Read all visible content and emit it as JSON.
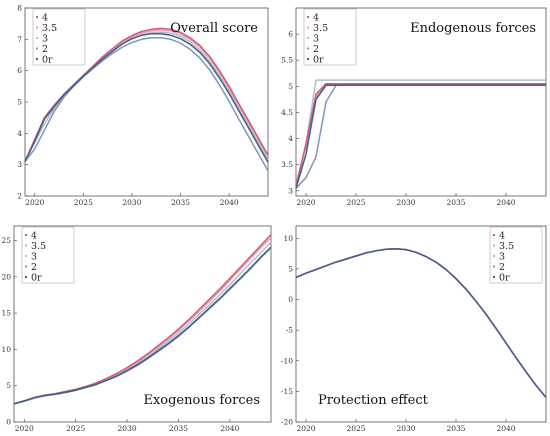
{
  "chart_data": [
    {
      "type": "line",
      "title": "Overall score",
      "xlim": [
        2019,
        2044
      ],
      "ylim": [
        2,
        8
      ],
      "xticks": [
        2020,
        2025,
        2030,
        2035,
        2040
      ],
      "yticks": [
        2,
        3,
        4,
        5,
        6,
        7,
        8
      ],
      "legend_position": "top-left",
      "series": [
        {
          "name": "4",
          "color": "#d45a7a",
          "x": [
            2019,
            2020,
            2021,
            2022,
            2023,
            2024,
            2025,
            2026,
            2027,
            2028,
            2029,
            2030,
            2031,
            2032,
            2033,
            2034,
            2035,
            2036,
            2037,
            2038,
            2039,
            2040,
            2041,
            2042,
            2043,
            2044
          ],
          "y": [
            3.1,
            3.8,
            4.5,
            4.9,
            5.25,
            5.55,
            5.85,
            6.15,
            6.45,
            6.7,
            6.95,
            7.12,
            7.25,
            7.32,
            7.35,
            7.32,
            7.22,
            7.05,
            6.8,
            6.45,
            6.0,
            5.5,
            4.95,
            4.4,
            3.85,
            3.3
          ]
        },
        {
          "name": "3.5",
          "color": "#e6a0b3",
          "x": [
            2019,
            2020,
            2021,
            2022,
            2023,
            2024,
            2025,
            2026,
            2027,
            2028,
            2029,
            2030,
            2031,
            2032,
            2033,
            2034,
            2035,
            2036,
            2037,
            2038,
            2039,
            2040,
            2041,
            2042,
            2043,
            2044
          ],
          "y": [
            3.1,
            3.8,
            4.5,
            4.9,
            5.25,
            5.55,
            5.85,
            6.13,
            6.42,
            6.66,
            6.9,
            7.07,
            7.2,
            7.27,
            7.3,
            7.27,
            7.17,
            7.0,
            6.75,
            6.4,
            5.95,
            5.45,
            4.9,
            4.35,
            3.8,
            3.25
          ]
        },
        {
          "name": "3",
          "color": "#b4bccb",
          "x": [
            2019,
            2020,
            2021,
            2022,
            2023,
            2024,
            2025,
            2026,
            2027,
            2028,
            2029,
            2030,
            2031,
            2032,
            2033,
            2034,
            2035,
            2036,
            2037,
            2038,
            2039,
            2040,
            2041,
            2042,
            2043,
            2044
          ],
          "y": [
            3.1,
            3.7,
            4.3,
            4.8,
            5.2,
            5.52,
            5.82,
            6.1,
            6.38,
            6.62,
            6.85,
            7.02,
            7.14,
            7.21,
            7.23,
            7.2,
            7.1,
            6.92,
            6.66,
            6.3,
            5.85,
            5.35,
            4.8,
            4.25,
            3.7,
            3.15
          ]
        },
        {
          "name": "2",
          "color": "#7f96b4",
          "x": [
            2019,
            2020,
            2021,
            2022,
            2023,
            2024,
            2025,
            2026,
            2027,
            2028,
            2029,
            2030,
            2031,
            2032,
            2033,
            2034,
            2035,
            2036,
            2037,
            2038,
            2039,
            2040,
            2041,
            2042,
            2043,
            2044
          ],
          "y": [
            3.1,
            3.5,
            4.1,
            4.7,
            5.15,
            5.5,
            5.8,
            6.07,
            6.32,
            6.55,
            6.75,
            6.9,
            7.0,
            7.05,
            7.05,
            7.0,
            6.88,
            6.68,
            6.4,
            6.02,
            5.55,
            5.02,
            4.45,
            3.9,
            3.35,
            2.8
          ]
        },
        {
          "name": "0r",
          "color": "#3f5f8f",
          "x": [
            2019,
            2020,
            2021,
            2022,
            2023,
            2024,
            2025,
            2026,
            2027,
            2028,
            2029,
            2030,
            2031,
            2032,
            2033,
            2034,
            2035,
            2036,
            2037,
            2038,
            2039,
            2040,
            2041,
            2042,
            2043,
            2044
          ],
          "y": [
            3.1,
            3.75,
            4.45,
            4.85,
            5.22,
            5.52,
            5.82,
            6.1,
            6.38,
            6.62,
            6.85,
            7.02,
            7.13,
            7.18,
            7.18,
            7.13,
            7.02,
            6.84,
            6.58,
            6.22,
            5.77,
            5.27,
            4.72,
            4.17,
            3.62,
            3.08
          ]
        }
      ]
    },
    {
      "type": "line",
      "title": "Endogenous forces",
      "xlim": [
        2019,
        2044
      ],
      "ylim": [
        2.9,
        6.5
      ],
      "xticks": [
        2020,
        2025,
        2030,
        2035,
        2040
      ],
      "yticks": [
        3.0,
        3.5,
        4.0,
        4.5,
        5.0,
        5.5,
        6.0
      ],
      "legend_position": "top-left",
      "series": [
        {
          "name": "4",
          "color": "#d45a7a",
          "x": [
            2019,
            2020,
            2021,
            2022,
            2023,
            2044
          ],
          "y": [
            3.1,
            3.9,
            4.85,
            5.05,
            5.05,
            5.05
          ]
        },
        {
          "name": "3.5",
          "color": "#e6a0b3",
          "x": [
            2019,
            2020,
            2021,
            2022,
            2023,
            2044
          ],
          "y": [
            3.1,
            3.85,
            4.8,
            5.03,
            5.03,
            5.03
          ]
        },
        {
          "name": "3",
          "color": "#b4bccb",
          "x": [
            2019,
            2020,
            2021,
            2022,
            2023,
            2044
          ],
          "y": [
            3.1,
            3.9,
            5.12,
            5.12,
            5.12,
            5.12
          ]
        },
        {
          "name": "2",
          "color": "#7f96b4",
          "x": [
            2019,
            2020,
            2021,
            2022,
            2023,
            2044
          ],
          "y": [
            3.05,
            3.25,
            3.65,
            4.7,
            5.02,
            5.02
          ]
        },
        {
          "name": "0r",
          "color": "#3f5f8f",
          "x": [
            2019,
            2020,
            2021,
            2022,
            2023,
            2044
          ],
          "y": [
            3.05,
            3.7,
            4.75,
            5.02,
            5.02,
            5.02
          ]
        }
      ]
    },
    {
      "type": "line",
      "title": "Exogenous forces",
      "xlim": [
        2019,
        2044
      ],
      "ylim": [
        0,
        27
      ],
      "xticks": [
        2020,
        2025,
        2030,
        2035,
        2040
      ],
      "yticks": [
        0,
        5,
        10,
        15,
        20,
        25
      ],
      "legend_position": "top-left",
      "series": [
        {
          "name": "4",
          "color": "#d45a7a",
          "x": [
            2019,
            2020,
            2021,
            2022,
            2023,
            2024,
            2025,
            2026,
            2027,
            2028,
            2029,
            2030,
            2031,
            2032,
            2033,
            2034,
            2035,
            2036,
            2037,
            2038,
            2039,
            2040,
            2041,
            2042,
            2043,
            2044
          ],
          "y": [
            2.5,
            2.9,
            3.4,
            3.7,
            3.9,
            4.2,
            4.5,
            4.9,
            5.4,
            6.0,
            6.7,
            7.5,
            8.4,
            9.4,
            10.5,
            11.6,
            12.8,
            14.1,
            15.5,
            16.9,
            18.3,
            19.8,
            21.3,
            22.8,
            24.3,
            25.8
          ]
        },
        {
          "name": "3.5",
          "color": "#e6a0b3",
          "x": [
            2019,
            2020,
            2021,
            2022,
            2023,
            2024,
            2025,
            2026,
            2027,
            2028,
            2029,
            2030,
            2031,
            2032,
            2033,
            2034,
            2035,
            2036,
            2037,
            2038,
            2039,
            2040,
            2041,
            2042,
            2043,
            2044
          ],
          "y": [
            2.5,
            2.9,
            3.4,
            3.7,
            3.9,
            4.2,
            4.5,
            4.9,
            5.35,
            5.95,
            6.6,
            7.4,
            8.3,
            9.3,
            10.3,
            11.4,
            12.6,
            13.9,
            15.2,
            16.6,
            18.0,
            19.5,
            21.0,
            22.5,
            24.0,
            25.4
          ]
        },
        {
          "name": "3",
          "color": "#b4bccb",
          "x": [
            2019,
            2020,
            2021,
            2022,
            2023,
            2024,
            2025,
            2026,
            2027,
            2028,
            2029,
            2030,
            2031,
            2032,
            2033,
            2034,
            2035,
            2036,
            2037,
            2038,
            2039,
            2040,
            2041,
            2042,
            2043,
            2044
          ],
          "y": [
            2.5,
            2.9,
            3.35,
            3.65,
            3.85,
            4.15,
            4.45,
            4.85,
            5.3,
            5.85,
            6.5,
            7.25,
            8.1,
            9.05,
            10.05,
            11.1,
            12.25,
            13.5,
            14.8,
            16.1,
            17.5,
            18.9,
            20.4,
            21.9,
            23.3,
            24.8
          ]
        },
        {
          "name": "2",
          "color": "#7f96b4",
          "x": [
            2019,
            2020,
            2021,
            2022,
            2023,
            2024,
            2025,
            2026,
            2027,
            2028,
            2029,
            2030,
            2031,
            2032,
            2033,
            2034,
            2035,
            2036,
            2037,
            2038,
            2039,
            2040,
            2041,
            2042,
            2043,
            2044
          ],
          "y": [
            2.5,
            2.85,
            3.3,
            3.6,
            3.8,
            4.05,
            4.35,
            4.75,
            5.15,
            5.7,
            6.3,
            7.0,
            7.8,
            8.7,
            9.7,
            10.7,
            11.8,
            13.0,
            14.3,
            15.6,
            16.9,
            18.3,
            19.7,
            21.1,
            22.6,
            24.0
          ]
        },
        {
          "name": "0r",
          "color": "#3f5f8f",
          "x": [
            2019,
            2020,
            2021,
            2022,
            2023,
            2024,
            2025,
            2026,
            2027,
            2028,
            2029,
            2030,
            2031,
            2032,
            2033,
            2034,
            2035,
            2036,
            2037,
            2038,
            2039,
            2040,
            2041,
            2042,
            2043,
            2044
          ],
          "y": [
            2.5,
            2.9,
            3.35,
            3.65,
            3.85,
            4.1,
            4.4,
            4.8,
            5.2,
            5.75,
            6.35,
            7.1,
            7.9,
            8.8,
            9.8,
            10.8,
            11.9,
            13.1,
            14.4,
            15.7,
            17.0,
            18.4,
            19.8,
            21.2,
            22.7,
            24.1
          ]
        }
      ]
    },
    {
      "type": "line",
      "title": "Protection effect",
      "xlim": [
        2019,
        2044
      ],
      "ylim": [
        -20,
        12
      ],
      "xticks": [
        2020,
        2025,
        2030,
        2035,
        2040
      ],
      "yticks": [
        -20,
        -15,
        -10,
        -5,
        0,
        5,
        10
      ],
      "legend_position": "top-right",
      "series": [
        {
          "name": "4",
          "color": "#d45a7a",
          "x": [
            2019,
            2020,
            2021,
            2022,
            2023,
            2024,
            2025,
            2026,
            2027,
            2028,
            2029,
            2030,
            2031,
            2032,
            2033,
            2034,
            2035,
            2036,
            2037,
            2038,
            2039,
            2040,
            2041,
            2042,
            2043,
            2044
          ],
          "y": [
            3.6,
            4.3,
            4.9,
            5.5,
            6.1,
            6.6,
            7.1,
            7.6,
            7.95,
            8.2,
            8.3,
            8.15,
            7.7,
            7.0,
            6.1,
            4.9,
            3.4,
            1.7,
            -0.3,
            -2.4,
            -4.7,
            -7.1,
            -9.5,
            -11.8,
            -14.0,
            -16.0
          ]
        },
        {
          "name": "3.5",
          "color": "#e6a0b3",
          "x": [
            2019,
            2020,
            2021,
            2022,
            2023,
            2024,
            2025,
            2026,
            2027,
            2028,
            2029,
            2030,
            2031,
            2032,
            2033,
            2034,
            2035,
            2036,
            2037,
            2038,
            2039,
            2040,
            2041,
            2042,
            2043,
            2044
          ],
          "y": [
            3.6,
            4.3,
            4.9,
            5.5,
            6.1,
            6.6,
            7.1,
            7.6,
            7.95,
            8.2,
            8.3,
            8.15,
            7.7,
            7.0,
            6.1,
            4.9,
            3.4,
            1.7,
            -0.3,
            -2.4,
            -4.7,
            -7.1,
            -9.5,
            -11.8,
            -14.0,
            -16.0
          ]
        },
        {
          "name": "3",
          "color": "#b4bccb",
          "x": [
            2019,
            2020,
            2021,
            2022,
            2023,
            2024,
            2025,
            2026,
            2027,
            2028,
            2029,
            2030,
            2031,
            2032,
            2033,
            2034,
            2035,
            2036,
            2037,
            2038,
            2039,
            2040,
            2041,
            2042,
            2043,
            2044
          ],
          "y": [
            3.6,
            4.3,
            4.9,
            5.5,
            6.1,
            6.6,
            7.1,
            7.6,
            7.95,
            8.2,
            8.3,
            8.15,
            7.7,
            7.0,
            6.1,
            4.9,
            3.4,
            1.7,
            -0.3,
            -2.4,
            -4.7,
            -7.1,
            -9.5,
            -11.8,
            -14.0,
            -16.0
          ]
        },
        {
          "name": "2",
          "color": "#7f96b4",
          "x": [
            2019,
            2020,
            2021,
            2022,
            2023,
            2024,
            2025,
            2026,
            2027,
            2028,
            2029,
            2030,
            2031,
            2032,
            2033,
            2034,
            2035,
            2036,
            2037,
            2038,
            2039,
            2040,
            2041,
            2042,
            2043,
            2044
          ],
          "y": [
            3.6,
            4.3,
            4.9,
            5.5,
            6.1,
            6.6,
            7.1,
            7.6,
            7.95,
            8.2,
            8.3,
            8.15,
            7.7,
            7.0,
            6.1,
            4.9,
            3.4,
            1.7,
            -0.3,
            -2.4,
            -4.7,
            -7.1,
            -9.5,
            -11.8,
            -14.0,
            -16.0
          ]
        },
        {
          "name": "0r",
          "color": "#3f5f8f",
          "x": [
            2019,
            2020,
            2021,
            2022,
            2023,
            2024,
            2025,
            2026,
            2027,
            2028,
            2029,
            2030,
            2031,
            2032,
            2033,
            2034,
            2035,
            2036,
            2037,
            2038,
            2039,
            2040,
            2041,
            2042,
            2043,
            2044
          ],
          "y": [
            3.6,
            4.3,
            4.9,
            5.5,
            6.1,
            6.6,
            7.1,
            7.6,
            7.95,
            8.2,
            8.3,
            8.15,
            7.7,
            7.0,
            6.1,
            4.9,
            3.4,
            1.7,
            -0.3,
            -2.4,
            -4.7,
            -7.1,
            -9.5,
            -11.8,
            -14.0,
            -16.0
          ]
        }
      ]
    }
  ],
  "legend_labels": [
    "4",
    "3.5",
    "3",
    "2",
    "0r"
  ]
}
